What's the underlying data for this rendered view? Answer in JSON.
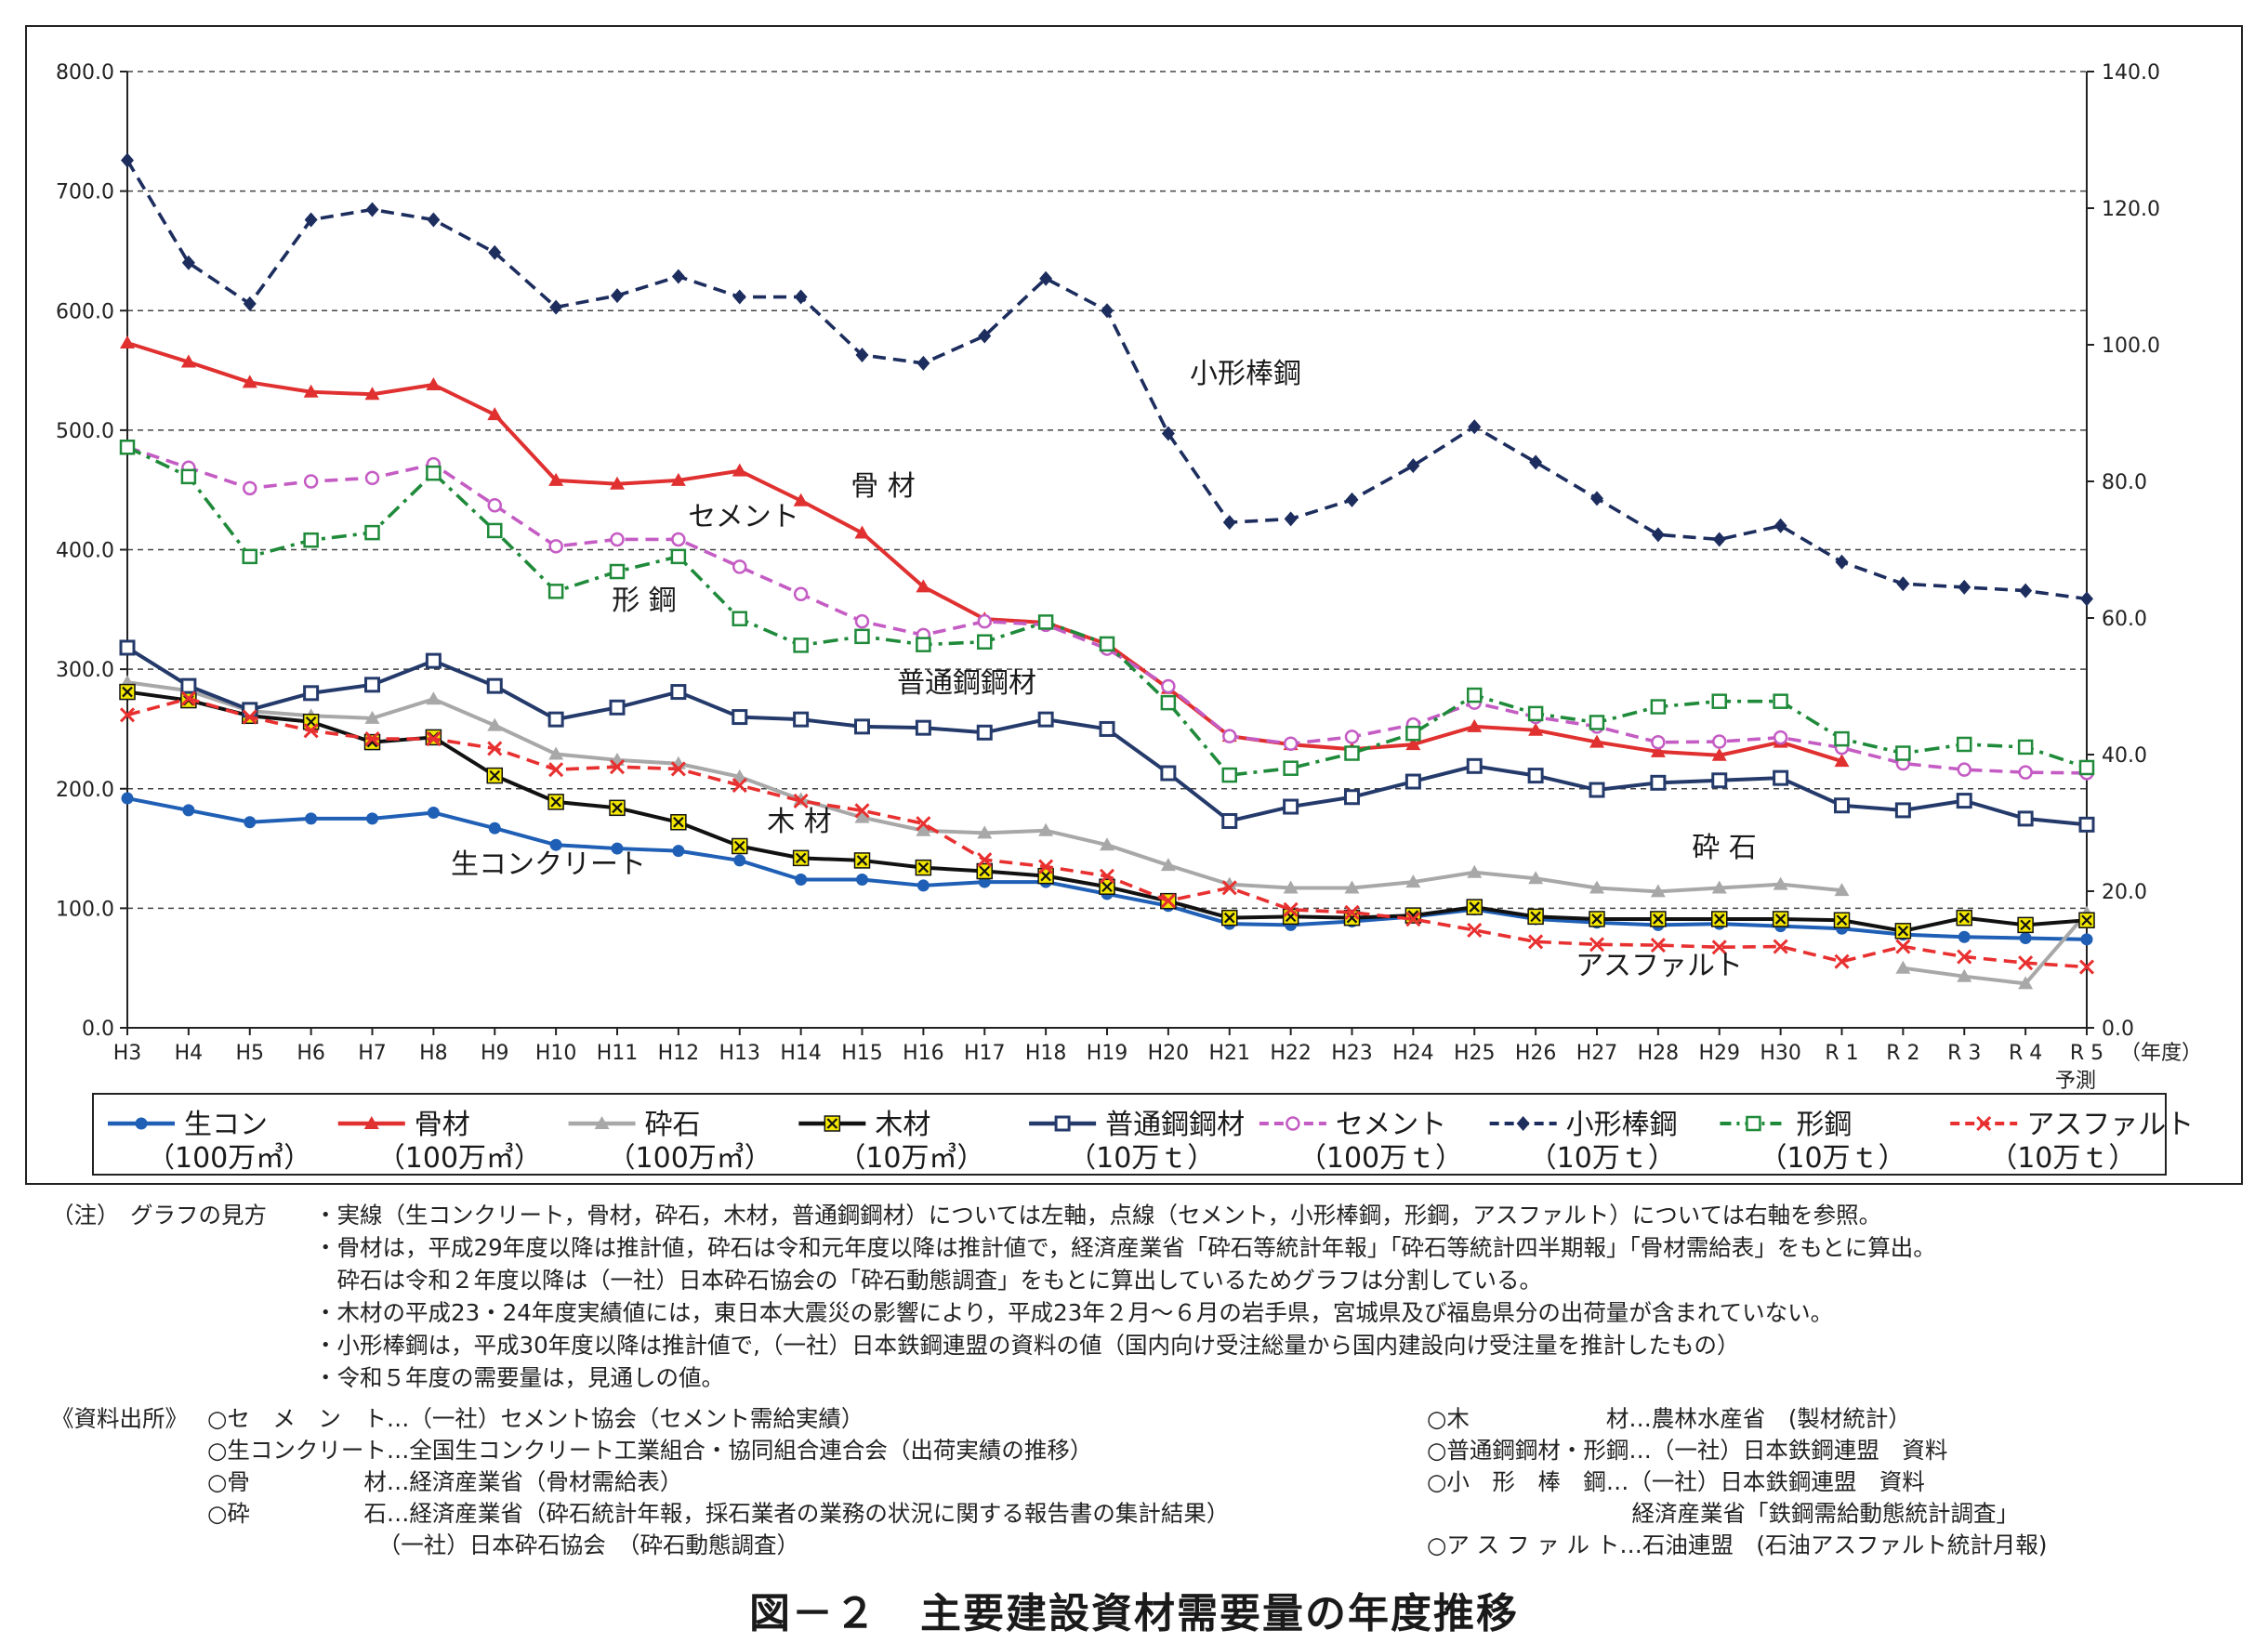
{
  "chart_data": {
    "type": "line",
    "x": [
      "H3",
      "H4",
      "H5",
      "H6",
      "H7",
      "H8",
      "H9",
      "H10",
      "H11",
      "H12",
      "H13",
      "H14",
      "H15",
      "H16",
      "H17",
      "H18",
      "H19",
      "H20",
      "H21",
      "H22",
      "H23",
      "H24",
      "H25",
      "H26",
      "H27",
      "H28",
      "H29",
      "H30",
      "R1",
      "R2",
      "R3",
      "R4",
      "R5"
    ],
    "x_tick_labels": [
      "H3",
      "H4",
      "H5",
      "H6",
      "H7",
      "H8",
      "H9",
      "H10",
      "H11",
      "H12",
      "H13",
      "H14",
      "H15",
      "H16",
      "H17",
      "H18",
      "H19",
      "H20",
      "H21",
      "H22",
      "H23",
      "H24",
      "H25",
      "H26",
      "H27",
      "H28",
      "H29",
      "H30",
      "R 1",
      "R 2",
      "R 3",
      "R 4",
      "R 5"
    ],
    "x_last_sublabel": "予測",
    "x_unit_label": "（年度）",
    "y_left": {
      "ylim": [
        0,
        800
      ],
      "ticks": [
        "0.0",
        "100.0",
        "200.0",
        "300.0",
        "400.0",
        "500.0",
        "600.0",
        "700.0",
        "800.0"
      ]
    },
    "y_right": {
      "ylim": [
        0,
        140
      ],
      "ticks": [
        "0.0",
        "20.0",
        "40.0",
        "60.0",
        "80.0",
        "100.0",
        "120.0",
        "140.0"
      ]
    },
    "grid": "horizontal dashed",
    "legend_position": "bottom",
    "series": [
      {
        "key": "namakon",
        "name": "生コン",
        "unit": "（100万㎥）",
        "axis": "left",
        "style": "solid",
        "color": "#1f5fb5",
        "marker": "circle",
        "values": [
          192,
          182,
          172,
          175,
          175,
          180,
          167,
          153,
          150,
          148,
          140,
          124,
          124,
          119,
          122,
          122,
          112,
          102,
          87,
          86,
          89,
          93,
          99,
          91,
          88,
          86,
          87,
          85,
          83,
          78,
          76,
          75,
          74
        ]
      },
      {
        "key": "kotsuzai",
        "name": "骨材",
        "unit": "（100万㎥）",
        "axis": "left",
        "style": "solid",
        "color": "#e03030",
        "marker": "triangle",
        "values": [
          573,
          557,
          540,
          532,
          530,
          538,
          513,
          458,
          455,
          458,
          466,
          441,
          414,
          369,
          342,
          339,
          321,
          284,
          244,
          237,
          233,
          237,
          252,
          249,
          239,
          231,
          228,
          239,
          223,
          null,
          null,
          null,
          null
        ]
      },
      {
        "key": "saiseki",
        "name": "砕石",
        "unit": "（100万㎥）",
        "axis": "left",
        "style": "solid",
        "color": "#a8a8a8",
        "marker": "triangle",
        "values": [
          289,
          282,
          265,
          261,
          259,
          275,
          253,
          229,
          224,
          221,
          210,
          191,
          176,
          165,
          163,
          165,
          153,
          136,
          120,
          117,
          117,
          122,
          130,
          125,
          117,
          114,
          117,
          120,
          115,
          50,
          43,
          37,
          96
        ],
        "segment_break_after": "R1"
      },
      {
        "key": "mokuzai",
        "name": "木材",
        "unit": "（10万㎥）",
        "axis": "left",
        "style": "solid",
        "color": "#111111",
        "marker": "x-square",
        "values": [
          281,
          274,
          261,
          256,
          239,
          243,
          211,
          189,
          184,
          172,
          152,
          142,
          140,
          134,
          131,
          127,
          118,
          106,
          92,
          93,
          92,
          94,
          101,
          93,
          91,
          91,
          91,
          91,
          90,
          81,
          92,
          86,
          90
        ]
      },
      {
        "key": "futsukozai",
        "name": "普通鋼鋼材",
        "unit": "（10万ｔ）",
        "axis": "left",
        "style": "solid",
        "color": "#243a6b",
        "marker": "square",
        "values": [
          318,
          286,
          266,
          280,
          287,
          307,
          286,
          258,
          268,
          281,
          260,
          258,
          252,
          251,
          247,
          258,
          250,
          213,
          173,
          185,
          193,
          206,
          219,
          211,
          199,
          205,
          207,
          209,
          186,
          182,
          190,
          175,
          170
        ]
      },
      {
        "key": "cement",
        "name": "セメント",
        "unit": "（100万ｔ）",
        "axis": "right",
        "style": "dashed",
        "color": "#c45cc4",
        "marker": "circle-open",
        "values": [
          85,
          82,
          79,
          80,
          80.5,
          82.5,
          76.5,
          70.5,
          71.5,
          71.5,
          67.5,
          63.5,
          59.5,
          57.5,
          59.5,
          59,
          55.5,
          50,
          42.7,
          41.6,
          42.6,
          44.4,
          47.6,
          45.5,
          44.1,
          41.8,
          41.9,
          42.5,
          41.0,
          38.7,
          37.8,
          37.4,
          37.3
        ]
      },
      {
        "key": "kogatabokou",
        "name": "小形棒鋼",
        "unit": "（10万ｔ）",
        "axis": "right",
        "style": "dashed",
        "color": "#1c2d5e",
        "marker": "diamond",
        "values": [
          127,
          112,
          106,
          118.3,
          119.8,
          118.3,
          113.5,
          105.5,
          107.2,
          110,
          107,
          107,
          98.5,
          97.3,
          101.3,
          109.7,
          105,
          87,
          74,
          74.5,
          77.3,
          82.3,
          88,
          82.8,
          77.5,
          72.2,
          71.5,
          73.5,
          68.2,
          65,
          64.5,
          64,
          62.8
        ]
      },
      {
        "key": "katakou",
        "name": "形鋼",
        "unit": "（10万ｔ）",
        "axis": "right",
        "style": "dashdot",
        "color": "#1f8a3a",
        "marker": "square-open",
        "values": [
          85,
          80.7,
          69,
          71.4,
          72.5,
          81.2,
          72.8,
          63.9,
          66.8,
          69,
          59.9,
          56,
          57.3,
          56.1,
          56.5,
          59.4,
          56.2,
          47.6,
          37,
          38,
          40.2,
          43.1,
          48.7,
          46,
          44.7,
          47,
          47.8,
          47.8,
          42.3,
          40.2,
          41.5,
          41.1,
          38.1
        ]
      },
      {
        "key": "asphalt",
        "name": "アスファルト",
        "unit": "（10万ｔ）",
        "axis": "right",
        "style": "dashed",
        "color": "#e83030",
        "marker": "x",
        "values": [
          45.8,
          48.2,
          45.5,
          43.5,
          42.3,
          42.3,
          40.9,
          37.8,
          38.2,
          37.9,
          35.5,
          33.2,
          31.8,
          29.9,
          24.6,
          23.6,
          22.2,
          18.6,
          20.5,
          17.3,
          16.9,
          15.9,
          14.3,
          12.6,
          12.2,
          12.1,
          11.8,
          11.9,
          9.7,
          11.9,
          10.4,
          9.5,
          8.9
        ]
      }
    ],
    "annotations": [
      {
        "text": "小形棒鋼",
        "series": "kogatabokou"
      },
      {
        "text": "骨 材",
        "series": "kotsuzai"
      },
      {
        "text": "セメント",
        "series": "cement"
      },
      {
        "text": "形 鋼",
        "series": "katakou"
      },
      {
        "text": "普通鋼鋼材",
        "series": "futsukozai"
      },
      {
        "text": "木 材",
        "series": "mokuzai"
      },
      {
        "text": "生コンクリート",
        "series": "namakon"
      },
      {
        "text": "砕 石",
        "series": "saiseki"
      },
      {
        "text": "アスファルト",
        "series": "asphalt"
      }
    ]
  },
  "notes": {
    "head1": "（注）",
    "head2": "グラフの見方",
    "lines": [
      "・実線（生コンクリート，骨材，砕石，木材，普通鋼鋼材）については左軸，点線（セメント，小形棒鋼，形鋼，アスファルト）については右軸を参照。",
      "・骨材は，平成29年度以降は推計値，砕石は令和元年度以降は推計値で，経済産業省「砕石等統計年報」「砕石等統計四半期報」「骨材需給表」をもとに算出。",
      "　砕石は令和２年度以降は（一社）日本砕石協会の「砕石動態調査」をもとに算出しているためグラフは分割している。",
      "・木材の平成23・24年度実績値には，東日本大震災の影響により，平成23年２月～６月の岩手県，宮城県及び福島県分の出荷量が含まれていない。",
      "・小形棒鋼は，平成30年度以降は推計値で,（一社）日本鉄鋼連盟の資料の値（国内向け受注総量から国内建設向け受注量を推計したもの）",
      "・令和５年度の需要量は，見通しの値。"
    ]
  },
  "sources": {
    "head": "《資料出所》",
    "left": [
      "○セ　メ　ン　ト…（一社）セメント協会（セメント需給実績）",
      "○生コンクリート…全国生コンクリート工業組合・協同組合連合会（出荷実績の推移）",
      "○骨　　　　　材…経済産業省（骨材需給表）",
      "○砕　　　　　石…経済産業省（砕石統計年報，採石業者の業務の状況に関する報告書の集計結果）",
      "　　　　　　　　（一社）日本砕石協会　（砕石動態調査）"
    ],
    "right": [
      "○木　　　　　　材…農林水産省　(製材統計）",
      "○普通鋼鋼材・形鋼…（一社）日本鉄鋼連盟　資料",
      "○小　形　棒　鋼…（一社）日本鉄鋼連盟　資料",
      "　　　　　　　　　経済産業省「鉄鋼需給動態統計調査」",
      "○ア ス フ ァ ル ト…石油連盟　(石油アスファルト統計月報)"
    ]
  },
  "caption": "図－２　主要建設資材需要量の年度推移"
}
